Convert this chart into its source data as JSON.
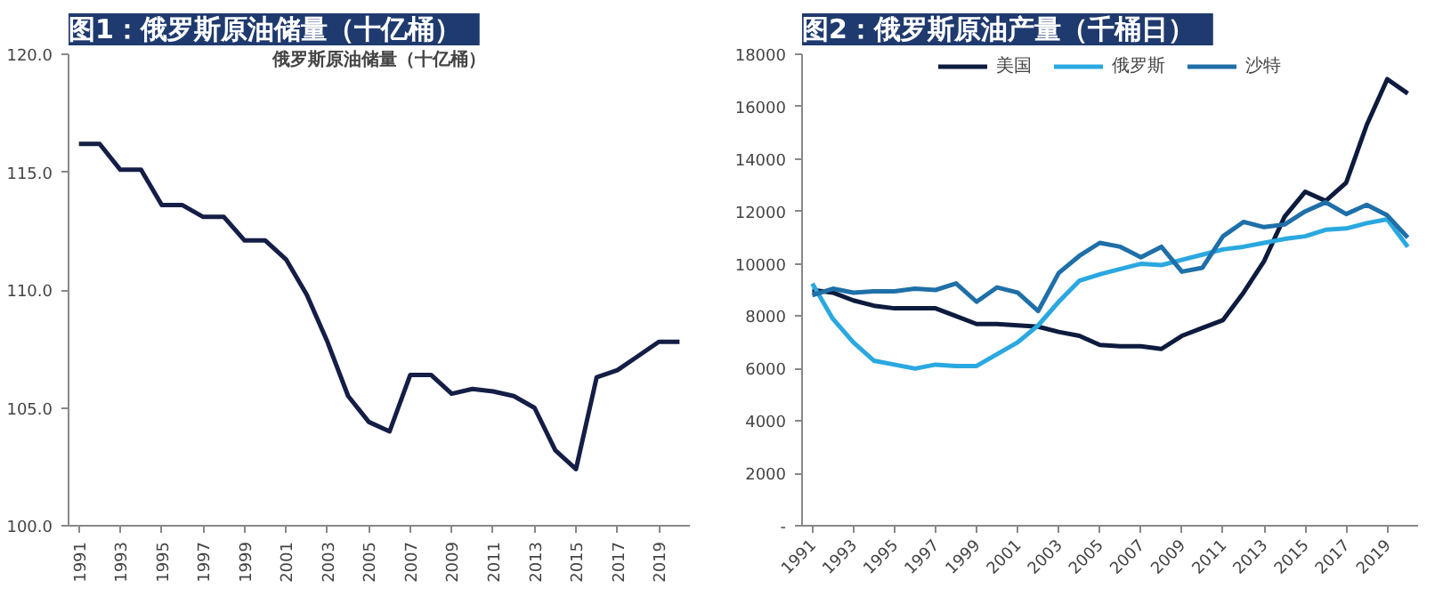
{
  "chart_data": [
    {
      "type": "line",
      "title": "图1：俄罗斯原油储量（十亿桶）",
      "subtitle": "俄罗斯原油储量（十亿桶）",
      "x": [
        1991,
        1992,
        1993,
        1994,
        1995,
        1996,
        1997,
        1998,
        1999,
        2000,
        2001,
        2002,
        2003,
        2004,
        2005,
        2006,
        2007,
        2008,
        2009,
        2010,
        2011,
        2012,
        2013,
        2014,
        2015,
        2016,
        2017,
        2018,
        2019,
        2020
      ],
      "series": [
        {
          "color": "#141e46",
          "values": [
            116.2,
            116.2,
            115.1,
            115.1,
            113.6,
            113.6,
            113.1,
            113.1,
            112.1,
            112.1,
            111.3,
            109.8,
            107.8,
            105.5,
            104.4,
            104.0,
            106.4,
            106.4,
            105.6,
            105.8,
            105.7,
            105.5,
            105.0,
            103.2,
            102.4,
            106.3,
            106.6,
            107.2,
            107.8,
            107.8
          ]
        }
      ],
      "xlim": [
        1990.5,
        2020.5
      ],
      "xticks": [
        1991,
        1993,
        1995,
        1997,
        1999,
        2001,
        2003,
        2005,
        2007,
        2009,
        2011,
        2013,
        2015,
        2017,
        2019
      ],
      "ylim": [
        100,
        120
      ],
      "yticks": [
        {
          "value": 100,
          "label": "100.0"
        },
        {
          "value": 105,
          "label": "105.0"
        },
        {
          "value": 110,
          "label": "110.0"
        },
        {
          "value": 115,
          "label": "115.0"
        },
        {
          "value": 120,
          "label": "120.0"
        }
      ],
      "grid": false,
      "legend": false,
      "line_style": "solid"
    },
    {
      "type": "line",
      "title": "图2：俄罗斯原油产量（千桶日）",
      "x": [
        1991,
        1992,
        1993,
        1994,
        1995,
        1996,
        1997,
        1998,
        1999,
        2000,
        2001,
        2002,
        2003,
        2004,
        2005,
        2006,
        2007,
        2008,
        2009,
        2010,
        2011,
        2012,
        2013,
        2014,
        2015,
        2016,
        2017,
        2018,
        2019,
        2020
      ],
      "series": [
        {
          "name": "美国",
          "color": "#0d1b3e",
          "values": [
            9000,
            8900,
            8600,
            8400,
            8300,
            8300,
            8300,
            8000,
            7700,
            7700,
            7650,
            7600,
            7400,
            7250,
            6900,
            6850,
            6850,
            6750,
            7250,
            7550,
            7850,
            8900,
            10100,
            11800,
            12750,
            12400,
            13100,
            15300,
            17050,
            16500
          ]
        },
        {
          "name": "俄罗斯",
          "color": "#2aa8e0",
          "values": [
            9250,
            7900,
            7000,
            6300,
            6150,
            6000,
            6150,
            6100,
            6100,
            6550,
            7000,
            7650,
            8550,
            9350,
            9600,
            9800,
            10000,
            9950,
            10150,
            10350,
            10550,
            10650,
            10800,
            10950,
            11050,
            11300,
            11350,
            11550,
            11700,
            10650
          ]
        },
        {
          "name": "沙特",
          "color": "#1f6fa8",
          "values": [
            8800,
            9050,
            8900,
            8950,
            8950,
            9050,
            9000,
            9250,
            8550,
            9100,
            8900,
            8200,
            9650,
            10300,
            10800,
            10650,
            10250,
            10650,
            9700,
            9850,
            11050,
            11600,
            11400,
            11500,
            12000,
            12350,
            11900,
            12250,
            11850,
            11000
          ]
        }
      ],
      "xlim": [
        1990.5,
        2020.5
      ],
      "xticks": [
        1991,
        1993,
        1995,
        1997,
        1999,
        2001,
        2003,
        2005,
        2007,
        2009,
        2011,
        2013,
        2015,
        2017,
        2019
      ],
      "ylim": [
        0,
        18000
      ],
      "yticks": [
        {
          "value": 0,
          "label": "-"
        },
        2000,
        4000,
        6000,
        8000,
        10000,
        12000,
        14000,
        16000,
        18000
      ],
      "grid": false,
      "legend": "top",
      "line_style": "solid"
    }
  ]
}
